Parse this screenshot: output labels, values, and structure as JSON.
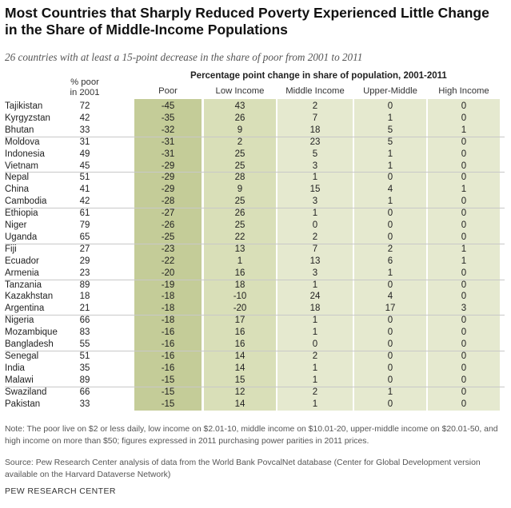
{
  "title": "Most Countries that Sharply Reduced Poverty Experienced Little Change in the Share of Middle-Income Populations",
  "subtitle": "26 countries with at least a 15-point decrease in the share of poor from 2001 to 2011",
  "span_header": "Percentage point change in share of population, 2001-2011",
  "chart_data": {
    "type": "table",
    "columns": [
      "% poor in 2001",
      "Poor",
      "Low Income",
      "Middle Income",
      "Upper-Middle",
      "High Income"
    ],
    "pct_header_line1": "% poor",
    "pct_header_line2": "in 2001",
    "rows": [
      {
        "country": "Tajikistan",
        "pct": "72",
        "poor": "-45",
        "low": "43",
        "mid": "2",
        "upper": "0",
        "high": "0"
      },
      {
        "country": "Kyrgyzstan",
        "pct": "42",
        "poor": "-35",
        "low": "26",
        "mid": "7",
        "upper": "1",
        "high": "0"
      },
      {
        "country": "Bhutan",
        "pct": "33",
        "poor": "-32",
        "low": "9",
        "mid": "18",
        "upper": "5",
        "high": "1"
      },
      {
        "country": "Moldova",
        "pct": "31",
        "poor": "-31",
        "low": "2",
        "mid": "23",
        "upper": "5",
        "high": "0"
      },
      {
        "country": "Indonesia",
        "pct": "49",
        "poor": "-31",
        "low": "25",
        "mid": "5",
        "upper": "1",
        "high": "0"
      },
      {
        "country": "Vietnam",
        "pct": "45",
        "poor": "-29",
        "low": "25",
        "mid": "3",
        "upper": "1",
        "high": "0"
      },
      {
        "country": "Nepal",
        "pct": "51",
        "poor": "-29",
        "low": "28",
        "mid": "1",
        "upper": "0",
        "high": "0"
      },
      {
        "country": "China",
        "pct": "41",
        "poor": "-29",
        "low": "9",
        "mid": "15",
        "upper": "4",
        "high": "1"
      },
      {
        "country": "Cambodia",
        "pct": "42",
        "poor": "-28",
        "low": "25",
        "mid": "3",
        "upper": "1",
        "high": "0"
      },
      {
        "country": "Ethiopia",
        "pct": "61",
        "poor": "-27",
        "low": "26",
        "mid": "1",
        "upper": "0",
        "high": "0"
      },
      {
        "country": "Niger",
        "pct": "79",
        "poor": "-26",
        "low": "25",
        "mid": "0",
        "upper": "0",
        "high": "0"
      },
      {
        "country": "Uganda",
        "pct": "65",
        "poor": "-25",
        "low": "22",
        "mid": "2",
        "upper": "0",
        "high": "0"
      },
      {
        "country": "Fiji",
        "pct": "27",
        "poor": "-23",
        "low": "13",
        "mid": "7",
        "upper": "2",
        "high": "1"
      },
      {
        "country": "Ecuador",
        "pct": "29",
        "poor": "-22",
        "low": "1",
        "mid": "13",
        "upper": "6",
        "high": "1"
      },
      {
        "country": "Armenia",
        "pct": "23",
        "poor": "-20",
        "low": "16",
        "mid": "3",
        "upper": "1",
        "high": "0"
      },
      {
        "country": "Tanzania",
        "pct": "89",
        "poor": "-19",
        "low": "18",
        "mid": "1",
        "upper": "0",
        "high": "0"
      },
      {
        "country": "Kazakhstan",
        "pct": "18",
        "poor": "-18",
        "low": "-10",
        "mid": "24",
        "upper": "4",
        "high": "0"
      },
      {
        "country": "Argentina",
        "pct": "21",
        "poor": "-18",
        "low": "-20",
        "mid": "18",
        "upper": "17",
        "high": "3"
      },
      {
        "country": "Nigeria",
        "pct": "66",
        "poor": "-18",
        "low": "17",
        "mid": "1",
        "upper": "0",
        "high": "0"
      },
      {
        "country": "Mozambique",
        "pct": "83",
        "poor": "-16",
        "low": "16",
        "mid": "1",
        "upper": "0",
        "high": "0"
      },
      {
        "country": "Bangladesh",
        "pct": "55",
        "poor": "-16",
        "low": "16",
        "mid": "0",
        "upper": "0",
        "high": "0"
      },
      {
        "country": "Senegal",
        "pct": "51",
        "poor": "-16",
        "low": "14",
        "mid": "2",
        "upper": "0",
        "high": "0"
      },
      {
        "country": "India",
        "pct": "35",
        "poor": "-16",
        "low": "14",
        "mid": "1",
        "upper": "0",
        "high": "0"
      },
      {
        "country": "Malawi",
        "pct": "89",
        "poor": "-15",
        "low": "15",
        "mid": "1",
        "upper": "0",
        "high": "0"
      },
      {
        "country": "Swaziland",
        "pct": "66",
        "poor": "-15",
        "low": "12",
        "mid": "2",
        "upper": "1",
        "high": "0"
      },
      {
        "country": "Pakistan",
        "pct": "33",
        "poor": "-15",
        "low": "14",
        "mid": "1",
        "upper": "0",
        "high": "0"
      }
    ]
  },
  "colors": {
    "poor_column": "#c4cc98",
    "low_column": "#d9dfb8",
    "other_columns": "#e5e9cf"
  },
  "note": "Note: The poor live on $2 or less daily, low income on $2.01-10, middle income on $10.01-20, upper-middle income on $20.01-50, and high income on more than $50; figures expressed in 2011 purchasing power parities in 2011 prices.",
  "source": "Source: Pew Research Center analysis of data from the World Bank PovcalNet database (Center for Global Development version available on the Harvard Dataverse Network)",
  "brand": "PEW RESEARCH CENTER"
}
